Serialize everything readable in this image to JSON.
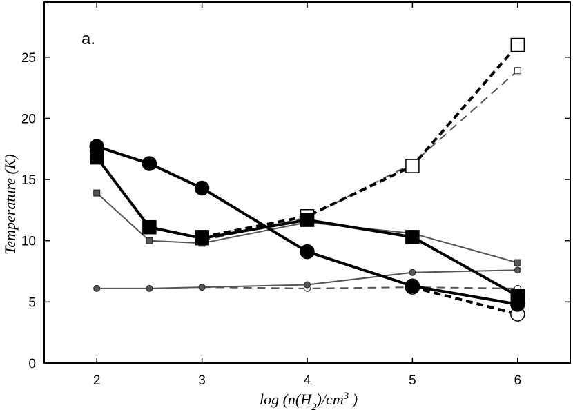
{
  "chart_data": {
    "type": "line",
    "panel_label": "a.",
    "xlabel": "log (n(H2)/cm3 )",
    "xlabel_parts": {
      "prefix": "log (n(H",
      "sub": "2",
      "mid": ")/cm",
      "sup": "3",
      "suffix": " )"
    },
    "ylabel": "Temperature (K)",
    "xlim": [
      1.5,
      6.5
    ],
    "ylim": [
      0,
      29.5
    ],
    "xticks": [
      2,
      3,
      4,
      5,
      6
    ],
    "yticks": [
      0,
      5,
      10,
      15,
      20,
      25
    ],
    "grid": false,
    "series": [
      {
        "name": "thick-circles-solid",
        "marker": "circle",
        "fill": "#000000",
        "size": "large",
        "line": "solid",
        "weight": "thick",
        "x": [
          2,
          2.5,
          3,
          4,
          5,
          6
        ],
        "y": [
          17.7,
          16.3,
          14.3,
          9.1,
          6.3,
          4.8
        ]
      },
      {
        "name": "thick-squares-solid",
        "marker": "square",
        "fill": "#000000",
        "size": "large",
        "line": "solid",
        "weight": "thick",
        "x": [
          2,
          2.5,
          3,
          4,
          5,
          6
        ],
        "y": [
          16.8,
          11.1,
          10.2,
          11.7,
          10.3,
          5.5
        ]
      },
      {
        "name": "thick-squares-dashed",
        "marker": "square",
        "fill": "#ffffff",
        "size": "large",
        "line": "dashed",
        "weight": "thick",
        "x": [
          3,
          4,
          5,
          6
        ],
        "y": [
          10.3,
          12.0,
          16.1,
          26.0
        ]
      },
      {
        "name": "thick-circles-dashed",
        "marker": "circle",
        "fill": "#ffffff",
        "size": "large",
        "line": "dashed",
        "weight": "thick",
        "x": [
          5,
          6
        ],
        "y": [
          6.2,
          4.0
        ]
      },
      {
        "name": "thin-circles-solid",
        "marker": "circle",
        "fill": "#555555",
        "size": "small",
        "line": "solid",
        "weight": "thin",
        "x": [
          2,
          2.5,
          3,
          4,
          5,
          6
        ],
        "y": [
          6.1,
          6.1,
          6.2,
          6.4,
          7.4,
          7.6
        ]
      },
      {
        "name": "thin-squares-solid",
        "marker": "square",
        "fill": "#555555",
        "size": "small",
        "line": "solid",
        "weight": "thin",
        "x": [
          2,
          2.5,
          3,
          4,
          5,
          6
        ],
        "y": [
          13.9,
          10.0,
          9.8,
          11.5,
          10.6,
          8.2
        ]
      },
      {
        "name": "thin-circles-dashed",
        "marker": "circle",
        "fill": "#ffffff",
        "size": "small",
        "line": "dashed",
        "weight": "thin",
        "x": [
          3,
          4,
          5,
          6
        ],
        "y": [
          6.2,
          6.1,
          6.2,
          6.1
        ]
      },
      {
        "name": "thin-squares-dashed",
        "marker": "square",
        "fill": "#ffffff",
        "size": "small",
        "line": "dashed",
        "weight": "thin",
        "x": [
          3,
          4,
          5,
          6
        ],
        "y": [
          10.0,
          11.9,
          16.3,
          23.9
        ]
      }
    ]
  }
}
